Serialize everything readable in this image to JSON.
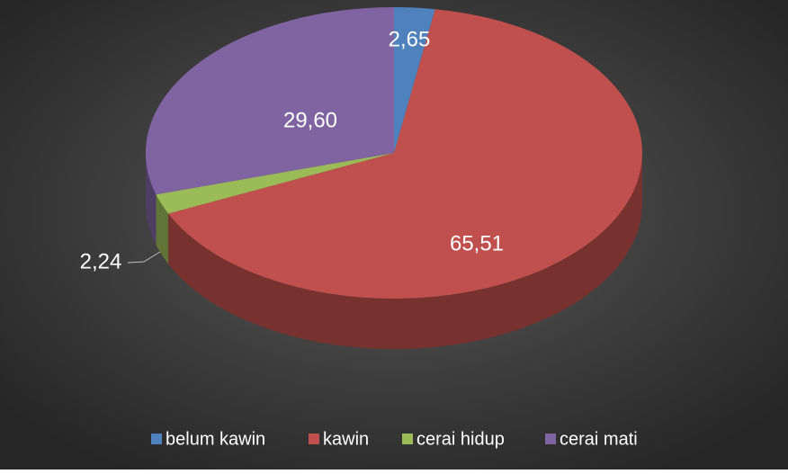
{
  "chart_data": {
    "type": "pie",
    "categories": [
      "belum kawin",
      "kawin",
      "cerai hidup",
      "cerai mati"
    ],
    "values": [
      2.65,
      65.51,
      2.24,
      29.6
    ],
    "value_labels": [
      "2,65",
      "65,51",
      "2,24",
      "29,60"
    ],
    "colors": [
      "#4f81bd",
      "#c0504d",
      "#9bbb59",
      "#8064a2"
    ],
    "legend": "bottom"
  }
}
